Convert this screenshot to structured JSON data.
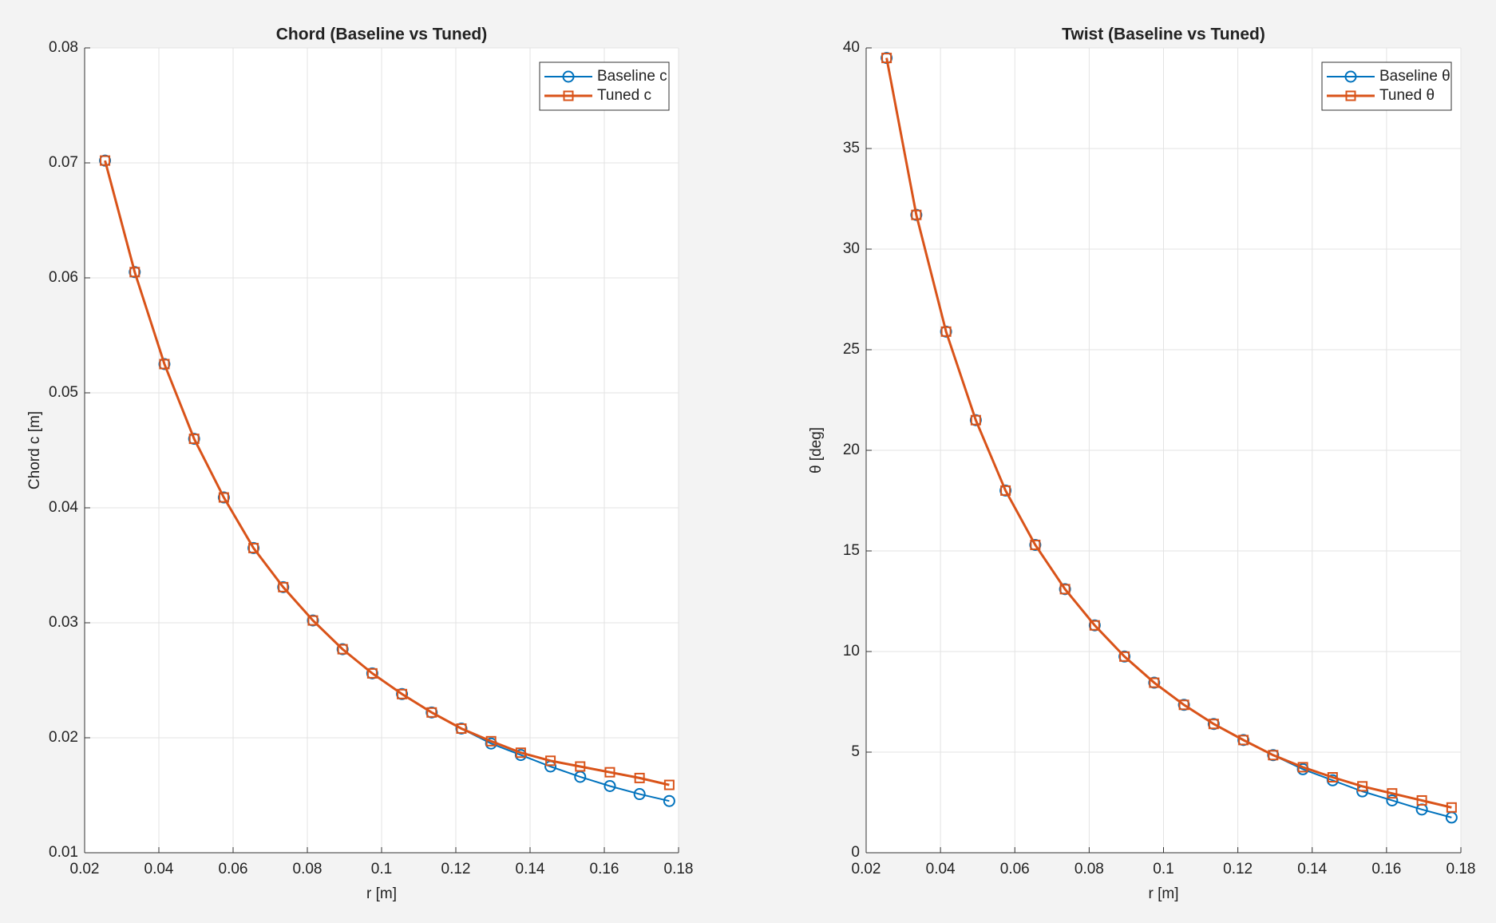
{
  "chart_data": [
    {
      "type": "line",
      "title": "Chord (Baseline vs Tuned)",
      "xlabel": "r [m]",
      "ylabel": "Chord c [m]",
      "x": [
        0.0255,
        0.0335,
        0.0415,
        0.0495,
        0.0575,
        0.0655,
        0.0735,
        0.0815,
        0.0895,
        0.0975,
        0.1055,
        0.1135,
        0.1215,
        0.1295,
        0.1375,
        0.1455,
        0.1535,
        0.1615,
        0.1695,
        0.1775
      ],
      "series": [
        {
          "name": "Baseline c",
          "color": "#0072bd",
          "marker": "o",
          "values": [
            0.0702,
            0.0605,
            0.0525,
            0.046,
            0.0409,
            0.0365,
            0.0331,
            0.0302,
            0.0277,
            0.0256,
            0.0238,
            0.0222,
            0.0208,
            0.0195,
            0.0185,
            0.0175,
            0.0166,
            0.0158,
            0.0151,
            0.0145
          ]
        },
        {
          "name": "Tuned c",
          "color": "#d95319",
          "marker": "s",
          "values": [
            0.0702,
            0.0605,
            0.0525,
            0.046,
            0.0409,
            0.0365,
            0.0331,
            0.0302,
            0.0277,
            0.0256,
            0.0238,
            0.0222,
            0.0208,
            0.0197,
            0.0187,
            0.018,
            0.0175,
            0.017,
            0.0165,
            0.0159
          ]
        }
      ],
      "xlim": [
        0.02,
        0.18
      ],
      "xticks": [
        0.02,
        0.04,
        0.06,
        0.08,
        0.1,
        0.12,
        0.14,
        0.16,
        0.18
      ],
      "ylim": [
        0.01,
        0.08
      ],
      "yticks": [
        0.01,
        0.02,
        0.03,
        0.04,
        0.05,
        0.06,
        0.07,
        0.08
      ],
      "grid": true,
      "legend": "northeast"
    },
    {
      "type": "line",
      "title": "Twist (Baseline vs Tuned)",
      "xlabel": "r [m]",
      "ylabel": "θ  [deg]",
      "x": [
        0.0255,
        0.0335,
        0.0415,
        0.0495,
        0.0575,
        0.0655,
        0.0735,
        0.0815,
        0.0895,
        0.0975,
        0.1055,
        0.1135,
        0.1215,
        0.1295,
        0.1375,
        0.1455,
        0.1535,
        0.1615,
        0.1695,
        0.1775
      ],
      "series": [
        {
          "name": "Baseline  θ",
          "color": "#0072bd",
          "marker": "o",
          "values": [
            39.5,
            31.7,
            25.9,
            21.5,
            18.0,
            15.3,
            13.1,
            11.3,
            9.75,
            8.45,
            7.35,
            6.4,
            5.6,
            4.85,
            4.15,
            3.6,
            3.05,
            2.6,
            2.15,
            1.75
          ]
        },
        {
          "name": "Tuned  θ",
          "color": "#d95319",
          "marker": "s",
          "values": [
            39.5,
            31.7,
            25.9,
            21.5,
            18.0,
            15.3,
            13.1,
            11.3,
            9.75,
            8.45,
            7.35,
            6.4,
            5.6,
            4.85,
            4.25,
            3.75,
            3.3,
            2.95,
            2.6,
            2.25
          ]
        }
      ],
      "xlim": [
        0.02,
        0.18
      ],
      "xticks": [
        0.02,
        0.04,
        0.06,
        0.08,
        0.1,
        0.12,
        0.14,
        0.16,
        0.18
      ],
      "ylim": [
        0,
        40
      ],
      "yticks": [
        0,
        5,
        10,
        15,
        20,
        25,
        30,
        35,
        40
      ],
      "grid": true,
      "legend": "northeast"
    }
  ]
}
